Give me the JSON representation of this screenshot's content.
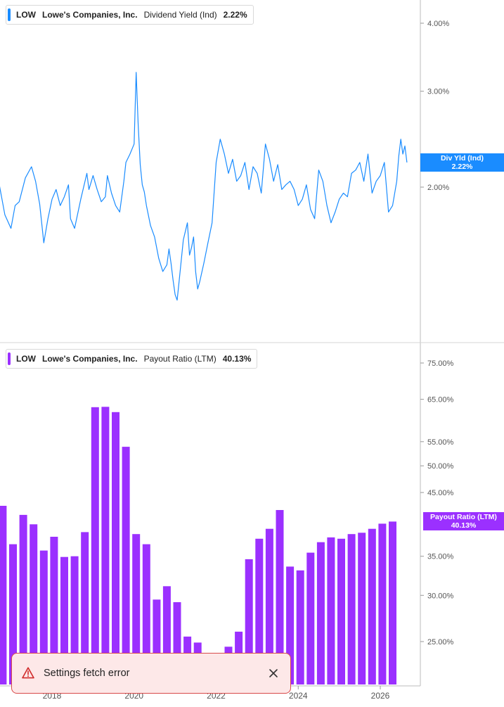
{
  "colors": {
    "yield_line": "#1a8cff",
    "payout_bars": "#9b30ff",
    "axis": "#bbbbbb",
    "toast_bg": "#fde8e8",
    "toast_border": "#d84a4a"
  },
  "chart_data": [
    {
      "type": "line",
      "ticker": "LOW",
      "company": "Lowe's Companies, Inc.",
      "metric": "Dividend Yield (Ind)",
      "current_value": "2.22%",
      "tag_label": "Div Yld (Ind)",
      "tag_value": "2.22%",
      "y_scale": "log",
      "ylim": [
        1.15,
        4.4
      ],
      "xlim": [
        2016.5,
        2026.85
      ],
      "yticks": [
        {
          "value": 4.0,
          "label": "4.00%"
        },
        {
          "value": 3.0,
          "label": "3.00%"
        },
        {
          "value": 2.0,
          "label": "2.00%"
        }
      ],
      "series": [
        {
          "x": [
            2016.5,
            2016.6,
            2016.7,
            2016.85,
            2017.0,
            2017.1,
            2017.2,
            2017.35,
            2017.5,
            2017.6,
            2017.7,
            2017.8,
            2017.9,
            2018.0,
            2018.1,
            2018.2,
            2018.3,
            2018.4,
            2018.45,
            2018.55,
            2018.7,
            2018.85,
            2018.9,
            2019.0,
            2019.1,
            2019.2,
            2019.3,
            2019.35,
            2019.45,
            2019.55,
            2019.65,
            2019.75,
            2019.8,
            2019.9,
            2020.0,
            2020.05,
            2020.1,
            2020.15,
            2020.2,
            2020.25,
            2020.3,
            2020.4,
            2020.5,
            2020.6,
            2020.7,
            2020.8,
            2020.85,
            2020.9,
            2020.95,
            2021.0,
            2021.05,
            2021.1,
            2021.2,
            2021.3,
            2021.35,
            2021.4,
            2021.45,
            2021.5,
            2021.55,
            2021.6,
            2021.7,
            2021.8,
            2021.9,
            2022.0,
            2022.1,
            2022.2,
            2022.3,
            2022.4,
            2022.5,
            2022.6,
            2022.7,
            2022.8,
            2022.9,
            2023.0,
            2023.1,
            2023.2,
            2023.3,
            2023.4,
            2023.5,
            2023.6,
            2023.7,
            2023.8,
            2023.9,
            2024.0,
            2024.1,
            2024.2,
            2024.3,
            2024.4,
            2024.5,
            2024.6,
            2024.7,
            2024.8,
            2024.9,
            2025.0,
            2025.1,
            2025.2,
            2025.3,
            2025.4,
            2025.5,
            2025.6,
            2025.7,
            2025.8,
            2025.9,
            2026.0,
            2026.1,
            2026.2,
            2026.3,
            2026.4,
            2026.45,
            2026.5,
            2026.55,
            2026.6,
            2026.65
          ],
          "y": [
            1.85,
            1.95,
            2.05,
            1.78,
            1.68,
            1.85,
            1.88,
            2.08,
            2.18,
            2.05,
            1.86,
            1.58,
            1.75,
            1.9,
            1.98,
            1.85,
            1.92,
            2.02,
            1.75,
            1.68,
            1.9,
            2.12,
            1.98,
            2.1,
            1.98,
            1.88,
            1.92,
            2.1,
            1.95,
            1.85,
            1.8,
            2.05,
            2.22,
            2.3,
            2.4,
            3.25,
            2.6,
            2.2,
            2.02,
            1.96,
            1.85,
            1.7,
            1.62,
            1.48,
            1.4,
            1.44,
            1.54,
            1.45,
            1.35,
            1.27,
            1.24,
            1.35,
            1.6,
            1.72,
            1.5,
            1.55,
            1.62,
            1.4,
            1.3,
            1.34,
            1.45,
            1.58,
            1.72,
            2.22,
            2.45,
            2.3,
            2.12,
            2.25,
            2.05,
            2.1,
            2.22,
            1.98,
            2.18,
            2.12,
            1.95,
            2.4,
            2.25,
            2.05,
            2.2,
            1.98,
            2.02,
            2.05,
            1.98,
            1.85,
            1.9,
            2.02,
            1.82,
            1.75,
            2.15,
            2.05,
            1.85,
            1.72,
            1.8,
            1.9,
            1.95,
            1.92,
            2.12,
            2.15,
            2.22,
            2.05,
            2.3,
            1.95,
            2.05,
            2.1,
            2.22,
            1.8,
            1.85,
            2.05,
            2.28,
            2.45,
            2.3,
            2.38,
            2.22
          ]
        }
      ]
    },
    {
      "type": "bar",
      "ticker": "LOW",
      "company": "Lowe's Companies, Inc.",
      "metric": "Payout Ratio (LTM)",
      "current_value": "40.13%",
      "tag_label": "Payout Ratio (LTM)",
      "tag_value": "40.13%",
      "y_scale": "log",
      "ylim": [
        22.0,
        78.0
      ],
      "yticks": [
        {
          "value": 75,
          "label": "75.00%"
        },
        {
          "value": 65,
          "label": "65.00%"
        },
        {
          "value": 55,
          "label": "55.00%"
        },
        {
          "value": 50,
          "label": "50.00%"
        },
        {
          "value": 45,
          "label": "45.00%"
        },
        {
          "value": 35,
          "label": "35.00%"
        },
        {
          "value": 30,
          "label": "30.00%"
        },
        {
          "value": 25,
          "label": "25.00%"
        }
      ],
      "x_ticks": [
        "2018",
        "2020",
        "2022",
        "2024",
        "2026"
      ],
      "series": [
        {
          "x": [
            2016.55,
            2016.8,
            2017.05,
            2017.3,
            2017.55,
            2017.8,
            2018.05,
            2018.3,
            2018.55,
            2018.8,
            2019.05,
            2019.3,
            2019.55,
            2019.8,
            2020.05,
            2020.3,
            2020.55,
            2020.8,
            2021.05,
            2021.3,
            2021.55,
            2021.8,
            2022.05,
            2022.3,
            2022.55,
            2022.8,
            2023.05,
            2023.3,
            2023.55,
            2023.8,
            2024.05,
            2024.3,
            2024.55,
            2024.8,
            2025.05,
            2025.3,
            2025.55,
            2025.8,
            2026.05,
            2026.3
          ],
          "values": [
            37.5,
            42.7,
            36.7,
            41.2,
            39.7,
            35.8,
            37.8,
            34.9,
            35.0,
            38.5,
            63.0,
            63.1,
            61.8,
            53.9,
            38.2,
            36.7,
            29.5,
            31.1,
            29.2,
            25.5,
            24.9,
            22.0,
            22.0,
            24.5,
            26.0,
            34.6,
            37.5,
            39.0,
            42.0,
            33.6,
            33.1,
            35.5,
            37.0,
            37.7,
            37.5,
            38.2,
            38.4,
            39.0,
            39.8,
            40.13
          ]
        }
      ]
    }
  ],
  "toast": {
    "message": "Settings fetch error",
    "icon": "warning-icon",
    "close_icon": "close-icon"
  }
}
